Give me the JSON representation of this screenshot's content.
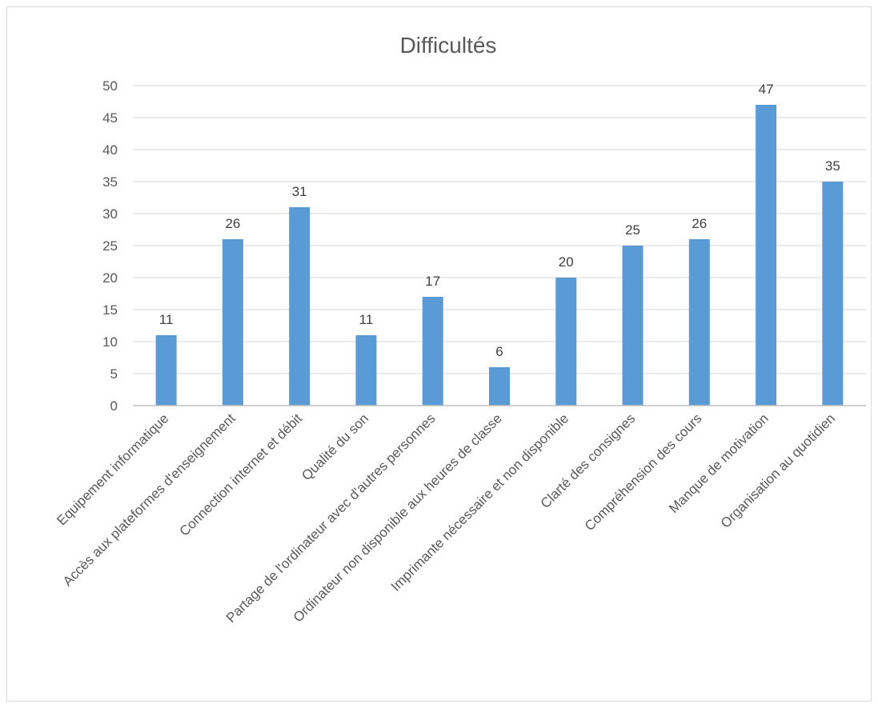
{
  "chart_data": {
    "type": "bar",
    "title": "Difficultés",
    "xlabel": "",
    "ylabel": "",
    "ylim": [
      0,
      50
    ],
    "yticks": [
      0,
      5,
      10,
      15,
      20,
      25,
      30,
      35,
      40,
      45,
      50
    ],
    "grid": true,
    "legend": "none",
    "bar_color": "#5b9bd5",
    "categories": [
      "Equipement informatique",
      "Accès aux plateformes d'enseignement",
      "Connection internet et débit",
      "Qualité du son",
      "Partage de l'ordinateur avec d'autres personnes",
      "Ordinateur non disponible aux heures de classe",
      "Imprimante nécessaire et non disponible",
      "Clarté des consignes",
      "Compréhension des cours",
      "Manque de motivation",
      "Organisation au quotidien"
    ],
    "values": [
      11,
      26,
      31,
      11,
      17,
      6,
      20,
      25,
      26,
      47,
      35
    ]
  }
}
